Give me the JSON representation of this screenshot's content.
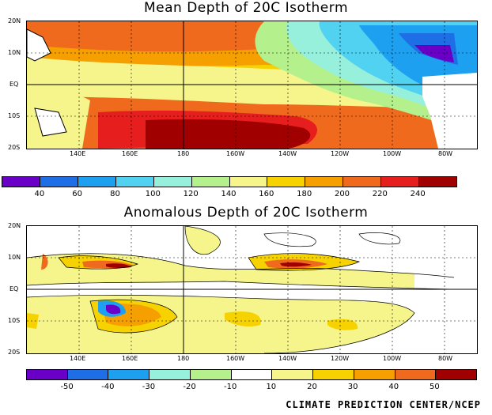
{
  "panels": [
    {
      "title": "Mean Depth of 20C Isotherm",
      "lat_labels": [
        "20N",
        "10N",
        "EQ",
        "10S",
        "20S"
      ],
      "lon_labels": [
        "140E",
        "160E",
        "180",
        "160W",
        "140W",
        "120W",
        "100W",
        "80W"
      ],
      "colorbar": {
        "colors": [
          "#6a00c8",
          "#1e6ee6",
          "#1ea0f0",
          "#50d2f0",
          "#96f0dc",
          "#b4f08c",
          "#f5f58c",
          "#f5d200",
          "#f5a000",
          "#f06a1e",
          "#e61e1e",
          "#a00000"
        ],
        "labels": [
          "40",
          "60",
          "80",
          "100",
          "120",
          "140",
          "160",
          "180",
          "200",
          "220",
          "240"
        ]
      }
    },
    {
      "title": "Anomalous Depth of 20C Isotherm",
      "lat_labels": [
        "20N",
        "10N",
        "EQ",
        "10S",
        "20S"
      ],
      "lon_labels": [
        "140E",
        "160E",
        "180",
        "160W",
        "140W",
        "120W",
        "100W",
        "80W"
      ],
      "colorbar": {
        "colors": [
          "#6a00c8",
          "#1e6ee6",
          "#1ea0f0",
          "#96f0dc",
          "#b4f08c",
          "#ffffff",
          "#f5f58c",
          "#f5d200",
          "#f5a000",
          "#f06a1e",
          "#a00000"
        ],
        "labels": [
          "-50",
          "-40",
          "-30",
          "-20",
          "-10",
          "10",
          "20",
          "30",
          "40",
          "50"
        ]
      }
    }
  ],
  "credit": "CLIMATE PREDICTION CENTER/NCEP"
}
